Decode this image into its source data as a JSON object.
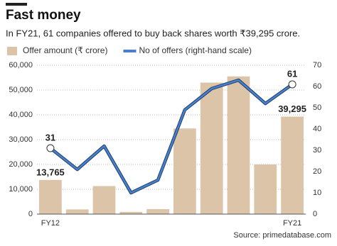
{
  "chart_data": {
    "type": "bar-line",
    "title": "Fast money",
    "subtitle": "In FY21, 61 companies offered to buy back shares worth ₹39,295 crore.",
    "source": "Source: primedatabase.com",
    "categories": [
      "FY12",
      null,
      null,
      null,
      null,
      null,
      null,
      null,
      null,
      "FY21"
    ],
    "series": [
      {
        "name": "Offer amount (₹ crore)",
        "color": "#dcc4a8",
        "type": "bar",
        "values": [
          13765,
          1900,
          11300,
          900,
          2000,
          34500,
          53000,
          55500,
          20000,
          39295
        ],
        "value_labels": [
          "13,765",
          null,
          null,
          null,
          null,
          null,
          null,
          null,
          null,
          "39,295"
        ]
      },
      {
        "name": "No of offers (right-hand scale)",
        "color": "#4a80c8",
        "type": "line",
        "axis": "y2",
        "values": [
          31,
          21,
          32,
          10,
          16,
          49,
          59,
          63,
          52,
          61
        ],
        "value_labels": [
          "31",
          null,
          null,
          null,
          null,
          null,
          null,
          null,
          null,
          "61"
        ]
      }
    ],
    "ylim": [
      0,
      60000
    ],
    "yticks": [
      0,
      {
        "value": 10000,
        "label": "10,000"
      },
      {
        "value": 20000,
        "label": "20,000"
      },
      {
        "value": 30000,
        "label": "30,000"
      },
      {
        "value": 40000,
        "label": "40,000"
      },
      {
        "value": 50000,
        "label": "50,000"
      },
      {
        "value": 60000,
        "label": "60,000"
      }
    ],
    "y2lim": [
      0,
      70
    ],
    "y2ticks": [
      0,
      10,
      20,
      30,
      40,
      50,
      60,
      70
    ],
    "grid": true
  }
}
